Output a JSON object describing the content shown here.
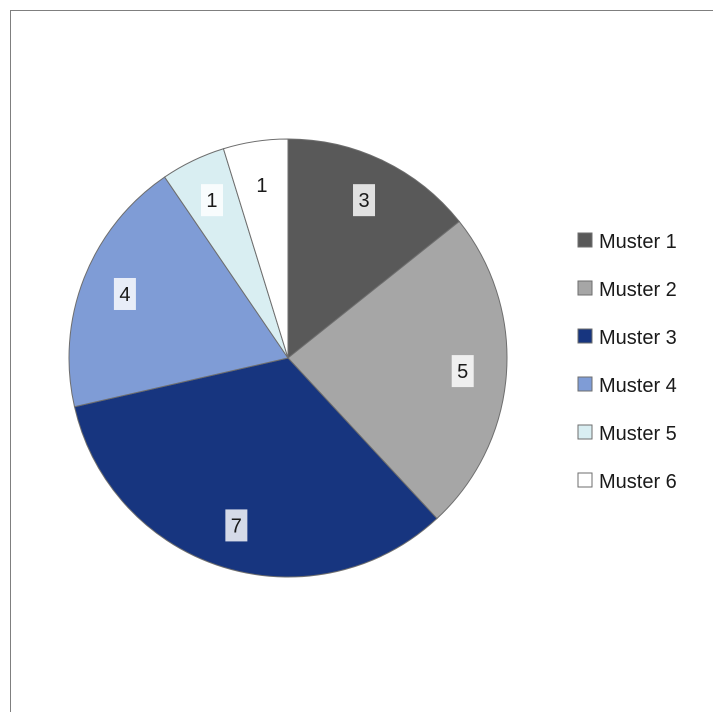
{
  "chart_data": {
    "type": "pie",
    "categories": [
      "Muster 1",
      "Muster 2",
      "Muster 3",
      "Muster 4",
      "Muster 5",
      "Muster 6"
    ],
    "values": [
      3,
      5,
      7,
      4,
      1,
      1
    ],
    "colors": [
      "#595959",
      "#a6a6a6",
      "#17357f",
      "#7f9cd6",
      "#d9eef2",
      "#ffffff"
    ],
    "legend_position": "right",
    "title": ""
  }
}
